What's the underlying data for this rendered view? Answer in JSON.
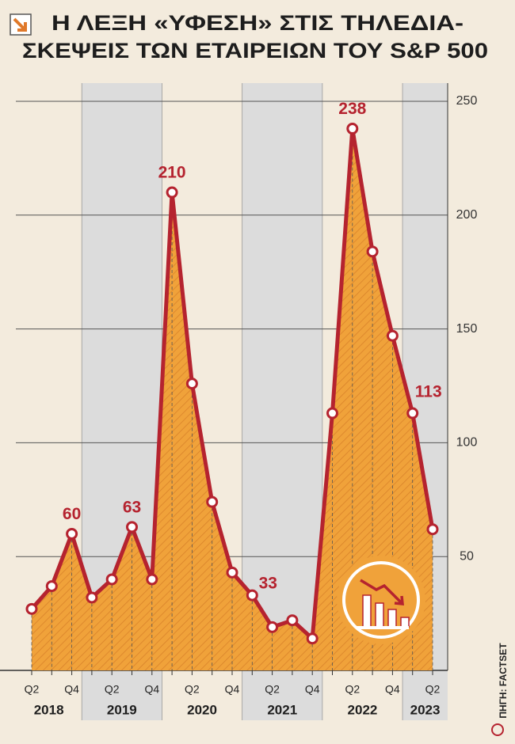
{
  "chart_data": {
    "type": "line",
    "title": [
      "Η ΛΕΞΗ «ΥΦΕΣΗ» ΣΤΙΣ ΤΗΛΕΔΙΑ-",
      "ΣΚΕΨΕΙΣ ΤΩΝ ΕΤΑΙΡΕΙΩΝ ΤΟΥ S&P 500"
    ],
    "categories": [
      "Q2",
      null,
      "Q4",
      null,
      "Q2",
      null,
      "Q4",
      null,
      "Q2",
      null,
      "Q4",
      null,
      "Q2",
      null,
      "Q4",
      null,
      "Q2",
      null,
      "Q4",
      null,
      "Q2"
    ],
    "years": [
      "2018",
      "2019",
      "2020",
      "2021",
      "2022",
      "2023"
    ],
    "series": [
      {
        "name": "Υφεση",
        "color": "#b5232f",
        "area_color": "#f0a23a",
        "values": [
          27,
          37,
          60,
          32,
          40,
          63,
          40,
          210,
          126,
          74,
          43,
          33,
          19,
          22,
          14,
          113,
          238,
          184,
          147,
          113,
          62
        ],
        "value_labels": [
          null,
          null,
          "60",
          null,
          null,
          "63",
          null,
          "210",
          null,
          null,
          null,
          "33",
          null,
          null,
          null,
          null,
          "238",
          null,
          null,
          "113",
          null
        ]
      }
    ],
    "ylim": [
      0,
      258
    ],
    "yticks": [
      50,
      100,
      150,
      200,
      250
    ],
    "grid": true,
    "source": "ΠΗΓΗ: FACTSET"
  }
}
